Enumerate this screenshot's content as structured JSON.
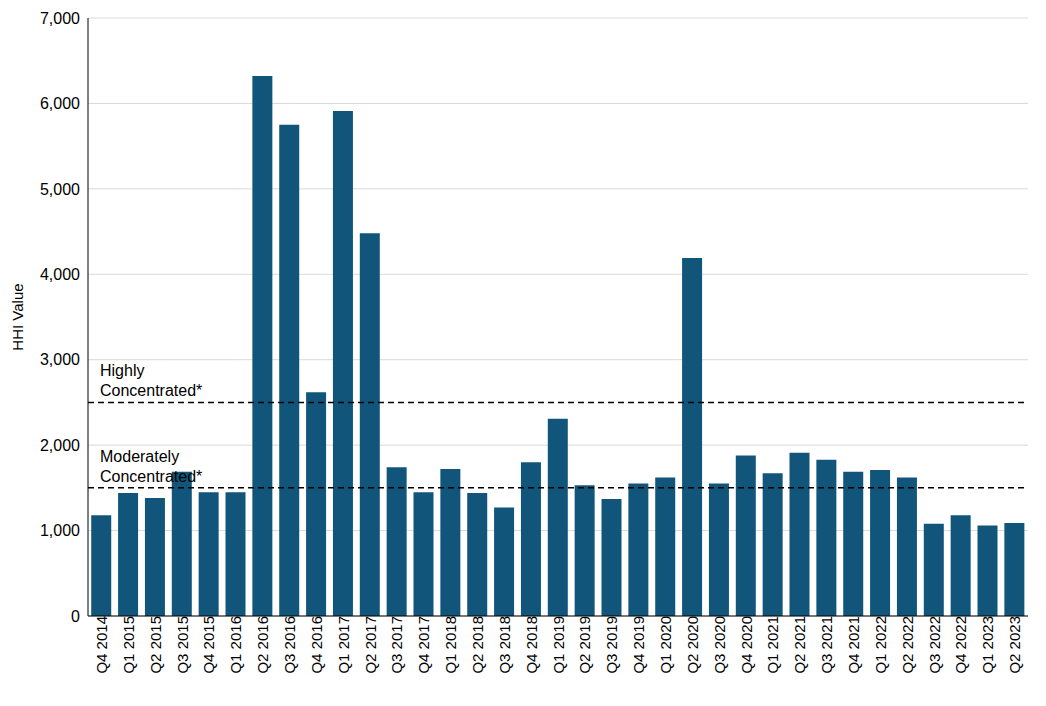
{
  "chart_data": {
    "type": "bar",
    "y_label": "HHI Value",
    "categories": [
      "Q4 2014",
      "Q1 2015",
      "Q2 2015",
      "Q3 2015",
      "Q4 2015",
      "Q1 2016",
      "Q2 2016",
      "Q3 2016",
      "Q4 2016",
      "Q1 2017",
      "Q2 2017",
      "Q3 2017",
      "Q4 2017",
      "Q1 2018",
      "Q2 2018",
      "Q3 2018",
      "Q4 2018",
      "Q1 2019",
      "Q2 2019",
      "Q3 2019",
      "Q4 2019",
      "Q1 2020",
      "Q2 2020",
      "Q3 2020",
      "Q4 2020",
      "Q1 2021",
      "Q2 2021",
      "Q3 2021",
      "Q4 2021",
      "Q1 2022",
      "Q2 2022",
      "Q3 2022",
      "Q4 2022",
      "Q1 2023",
      "Q2 2023"
    ],
    "values": [
      1180,
      1440,
      1380,
      1690,
      1450,
      1450,
      6320,
      5750,
      2620,
      5910,
      4480,
      1740,
      1450,
      1720,
      1440,
      1270,
      1800,
      2310,
      1530,
      1370,
      1550,
      1620,
      4190,
      1550,
      1880,
      1670,
      1910,
      1830,
      1690,
      1710,
      1620,
      1080,
      1180,
      1060,
      1090
    ],
    "color": "#11567a",
    "ylim": [
      0,
      7000
    ],
    "yticks": [
      0,
      {
        "value": 1000,
        "label": "1,000"
      },
      {
        "value": 2000,
        "label": "2,000"
      },
      {
        "value": 3000,
        "label": "3,000"
      },
      {
        "value": 4000,
        "label": "4,000"
      },
      {
        "value": 5000,
        "label": "5,000"
      },
      {
        "value": 6000,
        "label": "6,000"
      },
      {
        "value": 7000,
        "label": "7,000"
      }
    ],
    "grid": true,
    "reference_lines": [
      {
        "value": 2500,
        "label": "Highly Concentrated*"
      },
      {
        "value": 1500,
        "label": "Moderately Concentrated*"
      }
    ]
  }
}
